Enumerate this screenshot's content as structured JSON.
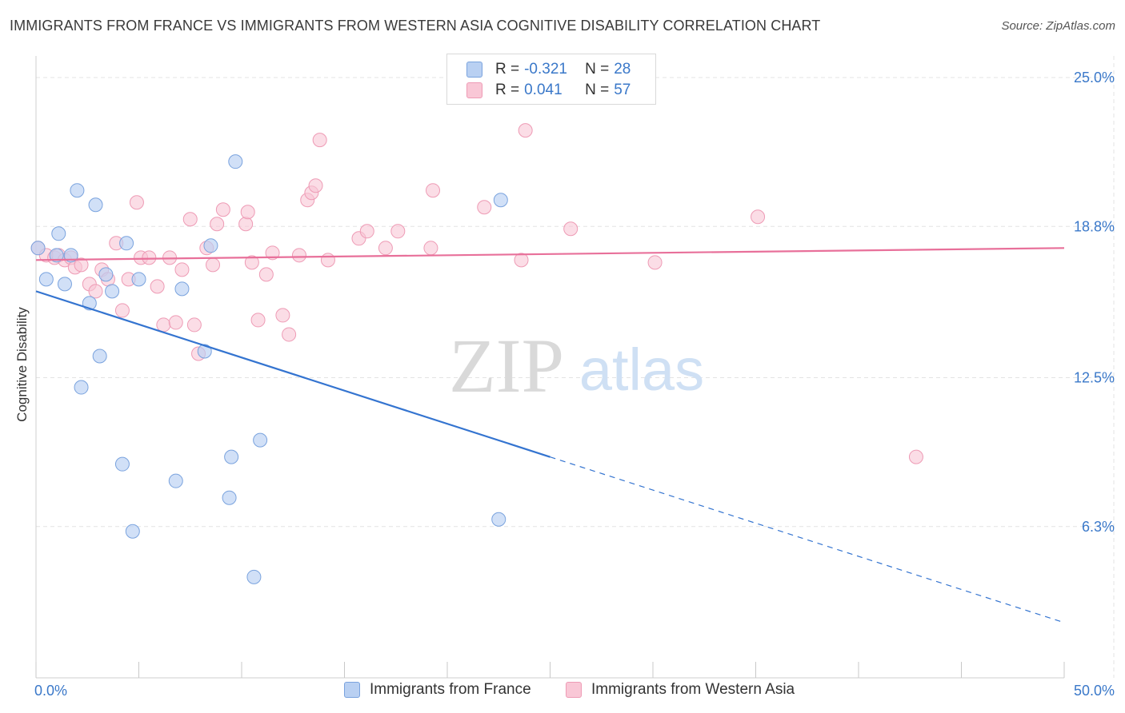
{
  "title": "IMMIGRANTS FROM FRANCE VS IMMIGRANTS FROM WESTERN ASIA COGNITIVE DISABILITY CORRELATION CHART",
  "source": "Source: ZipAtlas.com",
  "watermark": {
    "zip": "ZIP",
    "atlas": "atlas"
  },
  "legend": {
    "rows": [
      {
        "r_label": "R =",
        "r_value": "-0.321",
        "n_label": "N =",
        "n_value": "28"
      },
      {
        "r_label": "R =",
        "r_value": "0.041",
        "n_label": "N =",
        "n_value": "57"
      }
    ]
  },
  "colors": {
    "france_fill": "#b9d0f2",
    "france_stroke": "#7aa3de",
    "france_line": "#3474d0",
    "wasia_fill": "#f9c7d6",
    "wasia_stroke": "#ee9bb5",
    "wasia_line": "#e8709a",
    "tick_label": "#3a78c9",
    "grid": "#e3e3e3"
  },
  "chart_data": {
    "type": "scatter",
    "title": "IMMIGRANTS FROM FRANCE VS IMMIGRANTS FROM WESTERN ASIA COGNITIVE DISABILITY CORRELATION CHART",
    "xlabel": "",
    "ylabel": "Cognitive Disability",
    "xlim": [
      0,
      50
    ],
    "ylim": [
      0,
      25.9
    ],
    "x_tick_labels": [
      {
        "value": 0,
        "label": "0.0%"
      },
      {
        "value": 50,
        "label": "50.0%"
      }
    ],
    "y_tick_labels": [
      {
        "value": 25.0,
        "label": "25.0%"
      },
      {
        "value": 18.8,
        "label": "18.8%"
      },
      {
        "value": 12.5,
        "label": "12.5%"
      },
      {
        "value": 6.3,
        "label": "6.3%"
      }
    ],
    "grid": true,
    "legend_position": "top-center",
    "series": [
      {
        "name": "Immigrants from France",
        "points": [
          [
            0.1,
            17.9
          ],
          [
            0.5,
            16.6
          ],
          [
            1.0,
            17.6
          ],
          [
            1.1,
            18.5
          ],
          [
            1.4,
            16.4
          ],
          [
            1.7,
            17.6
          ],
          [
            2.0,
            20.3
          ],
          [
            2.2,
            12.1
          ],
          [
            2.6,
            15.6
          ],
          [
            2.9,
            19.7
          ],
          [
            3.1,
            13.4
          ],
          [
            3.4,
            16.8
          ],
          [
            3.7,
            16.1
          ],
          [
            4.2,
            8.9
          ],
          [
            4.4,
            18.1
          ],
          [
            4.7,
            6.1
          ],
          [
            5.0,
            16.6
          ],
          [
            6.8,
            8.2
          ],
          [
            7.1,
            16.2
          ],
          [
            8.2,
            13.6
          ],
          [
            8.5,
            18.0
          ],
          [
            9.4,
            7.5
          ],
          [
            9.5,
            9.2
          ],
          [
            9.7,
            21.5
          ],
          [
            10.6,
            4.2
          ],
          [
            10.9,
            9.9
          ],
          [
            22.5,
            6.6
          ],
          [
            22.6,
            19.9
          ]
        ],
        "trend": {
          "x0": 0,
          "y0": 16.1,
          "x1": 25,
          "y1": 9.2,
          "dashed_to_x": 50,
          "dashed_to_y": 2.3
        }
      },
      {
        "name": "Immigrants from Western Asia",
        "points": [
          [
            0.1,
            17.9
          ],
          [
            0.5,
            17.6
          ],
          [
            0.9,
            17.5
          ],
          [
            1.1,
            17.6
          ],
          [
            1.4,
            17.4
          ],
          [
            1.7,
            17.5
          ],
          [
            1.9,
            17.1
          ],
          [
            2.2,
            17.2
          ],
          [
            2.6,
            16.4
          ],
          [
            2.9,
            16.1
          ],
          [
            3.2,
            17.0
          ],
          [
            3.5,
            16.6
          ],
          [
            3.9,
            18.1
          ],
          [
            4.2,
            15.3
          ],
          [
            4.5,
            16.6
          ],
          [
            4.9,
            19.8
          ],
          [
            5.1,
            17.5
          ],
          [
            5.5,
            17.5
          ],
          [
            5.9,
            16.3
          ],
          [
            6.2,
            14.7
          ],
          [
            6.5,
            17.5
          ],
          [
            6.8,
            14.8
          ],
          [
            7.1,
            17.0
          ],
          [
            7.5,
            19.1
          ],
          [
            7.7,
            14.7
          ],
          [
            7.9,
            13.5
          ],
          [
            8.3,
            17.9
          ],
          [
            8.6,
            17.2
          ],
          [
            8.8,
            18.9
          ],
          [
            9.1,
            19.5
          ],
          [
            10.2,
            18.9
          ],
          [
            10.3,
            19.4
          ],
          [
            10.5,
            17.3
          ],
          [
            10.8,
            14.9
          ],
          [
            11.2,
            16.8
          ],
          [
            11.5,
            17.7
          ],
          [
            12.0,
            15.1
          ],
          [
            12.3,
            14.3
          ],
          [
            12.8,
            17.6
          ],
          [
            13.2,
            19.9
          ],
          [
            13.4,
            20.2
          ],
          [
            13.6,
            20.5
          ],
          [
            13.8,
            22.4
          ],
          [
            14.2,
            17.4
          ],
          [
            15.7,
            18.3
          ],
          [
            16.1,
            18.6
          ],
          [
            17.0,
            17.9
          ],
          [
            17.6,
            18.6
          ],
          [
            19.2,
            17.9
          ],
          [
            19.3,
            20.3
          ],
          [
            21.8,
            19.6
          ],
          [
            23.6,
            17.4
          ],
          [
            23.8,
            22.8
          ],
          [
            26.0,
            18.7
          ],
          [
            30.1,
            17.3
          ],
          [
            35.1,
            19.2
          ],
          [
            42.8,
            9.2
          ]
        ],
        "trend": {
          "x0": 0,
          "y0": 17.4,
          "x1": 50,
          "y1": 17.9
        }
      }
    ]
  },
  "bottom_legend": [
    "Immigrants from France",
    "Immigrants from Western Asia"
  ]
}
